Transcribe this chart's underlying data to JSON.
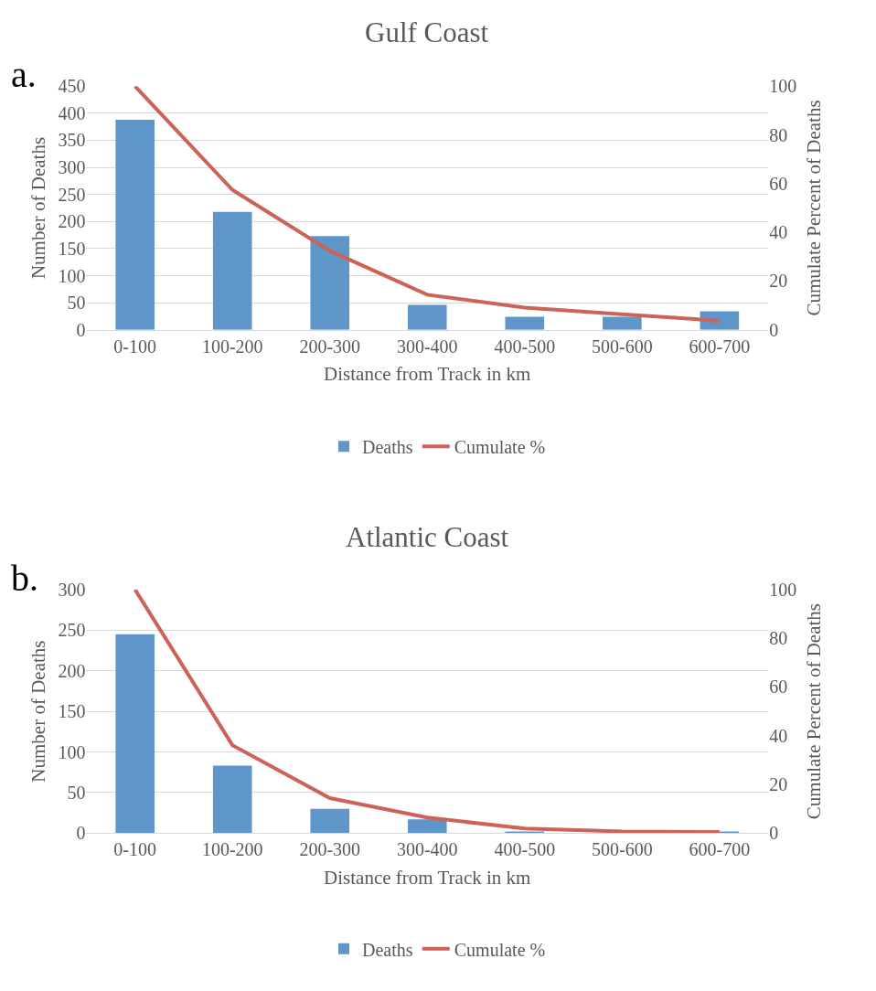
{
  "chart_data": [
    {
      "type": "bar",
      "title": "Gulf Coast",
      "xlabel": "Distance from Track in km",
      "ylabel": "Number of Deaths",
      "y2label": "Cumulate Percent of Deaths",
      "annotations": [
        "a."
      ],
      "categories": [
        "0-100",
        "100-200",
        "200-300",
        "300-400",
        "400-500",
        "500-600",
        "600-700"
      ],
      "series": [
        {
          "name": "Deaths",
          "color": "#5f96c9",
          "values": [
            388,
            218,
            173,
            46,
            24,
            24,
            34
          ]
        },
        {
          "name": "Cumulate %",
          "type": "line",
          "axis": "y2",
          "color": "#cd6259",
          "marker": "none",
          "line_style": "solid",
          "values": [
            100,
            57.4,
            32.4,
            14.4,
            9.1,
            6.4,
            3.7
          ]
        }
      ],
      "ylim": [
        0,
        450
      ],
      "yticks": [
        0,
        50,
        100,
        150,
        200,
        250,
        300,
        350,
        400,
        450
      ],
      "y2lim": [
        0,
        100
      ],
      "y2ticks": [
        0,
        20,
        40,
        60,
        80,
        100
      ],
      "grid": "y",
      "legend": "bottom"
    },
    {
      "type": "bar",
      "title": "Atlantic Coast",
      "xlabel": "Distance from Track in km",
      "ylabel": "Number of Deaths",
      "y2label": "Cumulate Percent of Deaths",
      "annotations": [
        "b."
      ],
      "categories": [
        "0-100",
        "100-200",
        "200-300",
        "300-400",
        "400-500",
        "500-600",
        "600-700"
      ],
      "series": [
        {
          "name": "Deaths",
          "color": "#5f96c9",
          "values": [
            245,
            83,
            30,
            17,
            2,
            0,
            2
          ]
        },
        {
          "name": "Cumulate %",
          "type": "line",
          "axis": "y2",
          "color": "#cd6259",
          "marker": "none",
          "line_style": "solid",
          "values": [
            100,
            36.1,
            14.4,
            6.4,
            1.9,
            0.7,
            0.5
          ]
        }
      ],
      "ylim": [
        0,
        300
      ],
      "yticks": [
        0,
        50,
        100,
        150,
        200,
        250,
        300
      ],
      "y2lim": [
        0,
        100
      ],
      "y2ticks": [
        0,
        20,
        40,
        60,
        80,
        100
      ],
      "grid": "y",
      "legend": "bottom"
    }
  ]
}
